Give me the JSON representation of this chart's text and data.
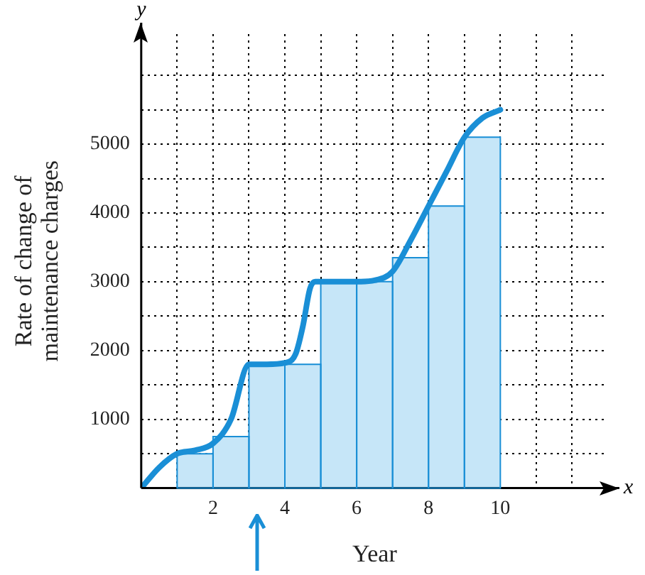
{
  "chart_data": {
    "type": "bar",
    "xlabel": "Year",
    "ylabel": "Rate of change of maintenance charges",
    "x": [
      1.5,
      2.5,
      3.5,
      4.5,
      5.5,
      6.5,
      7.5,
      8.5,
      9.5
    ],
    "series": [
      {
        "color": "#c6e6f8",
        "values": [
          500,
          750,
          1800,
          1800,
          3000,
          3000,
          3350,
          4100,
          5100
        ]
      },
      {
        "type": "line",
        "color": "#1a8fd6",
        "x": [
          0,
          0.5,
          1,
          1.5,
          2,
          2.5,
          3,
          3.5,
          4,
          4.3,
          4.5,
          4.7,
          4.85,
          5,
          6,
          6.5,
          7,
          7.5,
          8,
          8.5,
          9,
          9.5,
          10
        ],
        "values": [
          0,
          300,
          500,
          550,
          650,
          1000,
          1800,
          1800,
          1820,
          1950,
          2350,
          2900,
          3000,
          3000,
          3000,
          3020,
          3150,
          3600,
          4100,
          4600,
          5100,
          5380,
          5500
        ]
      }
    ],
    "xlim": [
      0,
      13
    ],
    "ylim": [
      0,
      6600
    ],
    "xticks": [
      {
        "value": 1,
        "label": null
      },
      2,
      {
        "value": 3,
        "label": null
      },
      4,
      {
        "value": 5,
        "label": null
      },
      6,
      {
        "value": 7,
        "label": null
      },
      8,
      {
        "value": 9,
        "label": null
      },
      10,
      {
        "value": 11,
        "label": null
      },
      {
        "value": 12,
        "label": null
      }
    ],
    "yticks": [
      {
        "value": 500,
        "label": null
      },
      1000,
      {
        "value": 1500,
        "label": null
      },
      2000,
      {
        "value": 2500,
        "label": null
      },
      3000,
      {
        "value": 3500,
        "label": null
      },
      4000,
      {
        "value": 4500,
        "label": null
      },
      5000,
      {
        "value": 5500,
        "label": null
      },
      {
        "value": 6000,
        "label": null
      }
    ],
    "annotations": [
      "x",
      "y"
    ],
    "grid": true,
    "legend": false,
    "marker": "none",
    "line_style": "solid"
  }
}
